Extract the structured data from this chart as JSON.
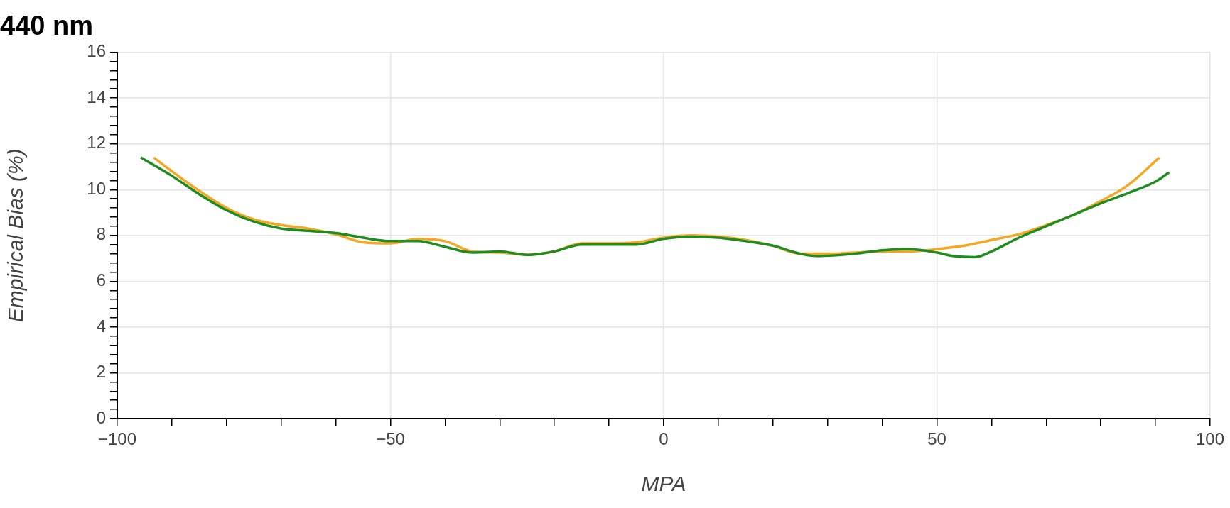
{
  "chart_data": {
    "type": "line",
    "title": "440 nm",
    "xlabel": "MPA",
    "ylabel": "Empirical Bias (%)",
    "xlim": [
      -100,
      100
    ],
    "xticks": [
      -100,
      {
        "value": -90,
        "label": null
      },
      {
        "value": -80,
        "label": null
      },
      {
        "value": -70,
        "label": null
      },
      {
        "value": -60,
        "label": null
      },
      -50,
      {
        "value": -40,
        "label": null
      },
      {
        "value": -30,
        "label": null
      },
      {
        "value": -20,
        "label": null
      },
      {
        "value": -10,
        "label": null
      },
      0,
      {
        "value": 10,
        "label": null
      },
      {
        "value": 20,
        "label": null
      },
      {
        "value": 30,
        "label": null
      },
      {
        "value": 40,
        "label": null
      },
      50,
      {
        "value": 60,
        "label": null
      },
      {
        "value": 70,
        "label": null
      },
      {
        "value": 80,
        "label": null
      },
      {
        "value": 90,
        "label": null
      },
      100
    ],
    "ylim": [
      0,
      16
    ],
    "yticks": [
      0,
      {
        "value": 0.4,
        "label": null
      },
      {
        "value": 0.8,
        "label": null
      },
      {
        "value": 1.2,
        "label": null
      },
      {
        "value": 1.6,
        "label": null
      },
      2,
      {
        "value": 2.4,
        "label": null
      },
      {
        "value": 2.8,
        "label": null
      },
      {
        "value": 3.2,
        "label": null
      },
      {
        "value": 3.6,
        "label": null
      },
      4,
      {
        "value": 4.4,
        "label": null
      },
      {
        "value": 4.8,
        "label": null
      },
      {
        "value": 5.2,
        "label": null
      },
      {
        "value": 5.6,
        "label": null
      },
      6,
      {
        "value": 6.4,
        "label": null
      },
      {
        "value": 6.8,
        "label": null
      },
      {
        "value": 7.2,
        "label": null
      },
      {
        "value": 7.6,
        "label": null
      },
      8,
      {
        "value": 8.4,
        "label": null
      },
      {
        "value": 8.8,
        "label": null
      },
      {
        "value": 9.2,
        "label": null
      },
      {
        "value": 9.6,
        "label": null
      },
      10,
      {
        "value": 10.4,
        "label": null
      },
      {
        "value": 10.8,
        "label": null
      },
      {
        "value": 11.2,
        "label": null
      },
      {
        "value": 11.6,
        "label": null
      },
      12,
      {
        "value": 12.4,
        "label": null
      },
      {
        "value": 12.8,
        "label": null
      },
      {
        "value": 13.2,
        "label": null
      },
      {
        "value": 13.6,
        "label": null
      },
      14,
      {
        "value": 14.4,
        "label": null
      },
      {
        "value": 14.8,
        "label": null
      },
      {
        "value": 15.2,
        "label": null
      },
      {
        "value": 15.6,
        "label": null
      },
      16
    ],
    "grid": true,
    "legend": false,
    "marker": "none",
    "line_style": "solid",
    "series": [
      {
        "color": "#1e8c1e",
        "x": [
          -95.7,
          -90,
          -85,
          -80,
          -75,
          -70,
          -65,
          -60,
          -55,
          -50,
          -45,
          -40,
          -35,
          -30,
          -25,
          -20,
          -15,
          -10,
          -5,
          0,
          5,
          10,
          15,
          20,
          25,
          28,
          35,
          40,
          45,
          50,
          53,
          57,
          60,
          65,
          70,
          75,
          80,
          85,
          90,
          92.5
        ],
        "values": [
          11.4,
          10.6,
          9.8,
          9.1,
          8.6,
          8.3,
          8.2,
          8.1,
          7.9,
          7.75,
          7.75,
          7.5,
          7.25,
          7.3,
          7.15,
          7.3,
          7.6,
          7.6,
          7.6,
          7.85,
          7.95,
          7.9,
          7.75,
          7.55,
          7.2,
          7.1,
          7.2,
          7.35,
          7.4,
          7.25,
          7.1,
          7.05,
          7.3,
          7.9,
          8.4,
          8.9,
          9.4,
          9.85,
          10.35,
          10.75
        ]
      },
      {
        "color": "#f5a623",
        "x": [
          -93.3,
          -90,
          -85,
          -80,
          -75,
          -70,
          -65,
          -60,
          -55,
          -50,
          -45,
          -40,
          -35,
          -30,
          -25,
          -20,
          -15,
          -10,
          -5,
          0,
          5,
          10,
          15,
          20,
          25,
          30,
          35,
          40,
          45,
          50,
          55,
          60,
          65,
          70,
          75,
          80,
          85,
          90.7
        ],
        "values": [
          11.4,
          10.8,
          9.95,
          9.2,
          8.7,
          8.45,
          8.3,
          8.05,
          7.7,
          7.65,
          7.85,
          7.75,
          7.3,
          7.25,
          7.15,
          7.3,
          7.65,
          7.65,
          7.7,
          7.9,
          8.0,
          7.95,
          7.8,
          7.55,
          7.2,
          7.2,
          7.25,
          7.3,
          7.3,
          7.4,
          7.55,
          7.8,
          8.05,
          8.45,
          8.9,
          9.5,
          10.2,
          11.4
        ]
      }
    ]
  }
}
